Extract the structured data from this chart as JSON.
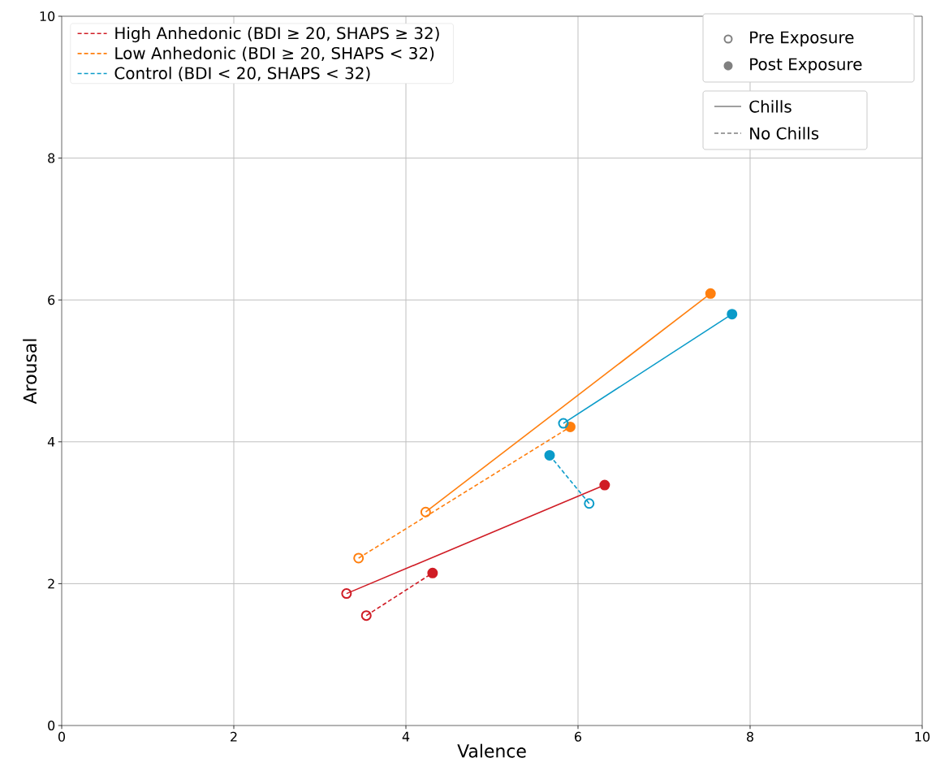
{
  "chart_data": {
    "type": "line",
    "xlabel": "Valence",
    "ylabel": "Arousal",
    "xlim": [
      0,
      10
    ],
    "ylim": [
      0,
      10
    ],
    "xticks": [
      0,
      2,
      4,
      6,
      8,
      10
    ],
    "yticks": [
      0,
      2,
      4,
      6,
      8,
      10
    ],
    "grid": true,
    "legend": "top left",
    "marker": "circle",
    "annotations": [
      "Pre Exposure",
      "Post Exposure",
      "Chills",
      "No Chills"
    ],
    "series": [
      {
        "name": "High Anhedonic (BDI ≥ 20, SHAPS ≥ 32)",
        "color": "#d01c25",
        "line_style": "dashed",
        "x": [
          3.54,
          4.31
        ],
        "values": [
          1.55,
          2.15
        ]
      },
      {
        "name": "Low Anhedonic (BDI ≥ 20, SHAPS < 32)",
        "color": "#ff7f0e",
        "line_style": "dashed",
        "x": [
          3.45,
          5.91
        ],
        "values": [
          2.36,
          4.21
        ]
      },
      {
        "name": "Control (BDI < 20, SHAPS < 32)",
        "color": "#0a9bc9",
        "line_style": "dashed",
        "x": [
          6.13,
          5.67
        ],
        "values": [
          3.13,
          3.81
        ]
      },
      {
        "color": "#d01c25",
        "line_style": "solid",
        "x": [
          3.31,
          6.31
        ],
        "values": [
          1.86,
          3.39
        ]
      },
      {
        "color": "#ff7f0e",
        "line_style": "solid",
        "x": [
          4.23,
          7.54
        ],
        "values": [
          3.01,
          6.09
        ]
      },
      {
        "color": "#0a9bc9",
        "line_style": "solid",
        "x": [
          5.83,
          7.79
        ],
        "values": [
          4.26,
          5.8
        ]
      }
    ]
  }
}
